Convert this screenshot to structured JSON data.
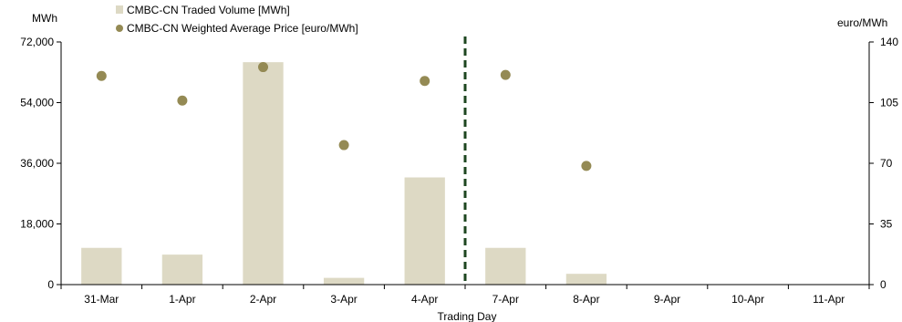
{
  "chart_data": {
    "type": "bar",
    "categories": [
      "31-Mar",
      "1-Apr",
      "2-Apr",
      "3-Apr",
      "4-Apr",
      "7-Apr",
      "8-Apr",
      "9-Apr",
      "10-Apr",
      "11-Apr"
    ],
    "series": [
      {
        "name": "CMBC-CN Traded Volume [MWh]",
        "type": "bar",
        "axis": "left",
        "color": "#ddd9c4",
        "values": [
          10900,
          8900,
          66000,
          2000,
          31800,
          10900,
          3200,
          null,
          null,
          null
        ]
      },
      {
        "name": "CMBC-CN Weighted Average Price [euro/MWh]",
        "type": "scatter",
        "axis": "right",
        "color": "#948a54",
        "values": [
          120.4,
          106.2,
          125.5,
          80.5,
          117.5,
          121.0,
          68.5,
          null,
          null,
          null
        ]
      }
    ],
    "xlabel": "Trading Day",
    "ylabel_left": "MWh",
    "ylabel_right": "euro/MWh",
    "ylim_left": [
      0,
      72000
    ],
    "yticks_left": [
      "0",
      "18,000",
      "36,000",
      "54,000",
      "72,000"
    ],
    "ylim_right": [
      0,
      140
    ],
    "yticks_right": [
      "0",
      "35",
      "70",
      "105",
      "140"
    ],
    "divider_after_category": "4-Apr",
    "divider_color": "#1e4620",
    "grid": false,
    "legend_position": "top-left"
  }
}
